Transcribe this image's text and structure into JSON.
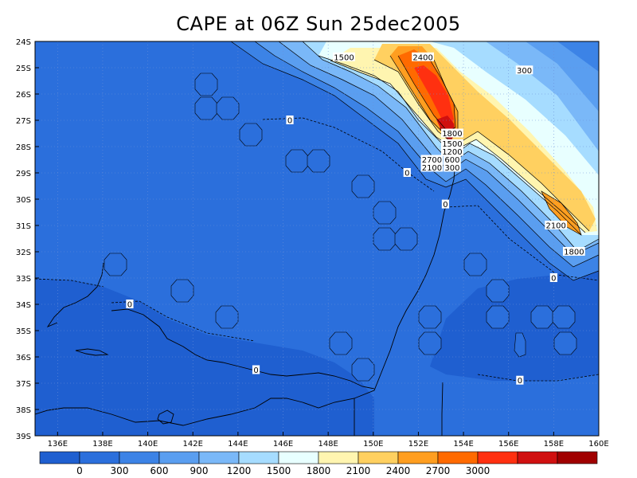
{
  "chart_data": {
    "type": "heatmap",
    "title": "CAPE at 06Z Sun 25dec2005",
    "x_ticks": [
      "136E",
      "138E",
      "140E",
      "142E",
      "144E",
      "146E",
      "148E",
      "150E",
      "152E",
      "154E",
      "156E",
      "158E",
      "160E"
    ],
    "x_tick_values": [
      136,
      138,
      140,
      142,
      144,
      146,
      148,
      150,
      152,
      154,
      156,
      158,
      160
    ],
    "y_ticks": [
      "24S",
      "25S",
      "26S",
      "27S",
      "28S",
      "29S",
      "30S",
      "31S",
      "32S",
      "33S",
      "34S",
      "35S",
      "36S",
      "37S",
      "38S",
      "39S"
    ],
    "y_tick_values": [
      -24,
      -25,
      -26,
      -27,
      -28,
      -29,
      -30,
      -31,
      -32,
      -33,
      -34,
      -35,
      -36,
      -37,
      -38,
      -39
    ],
    "xlim": [
      135,
      160
    ],
    "ylim": [
      -39,
      -24
    ],
    "grid": true,
    "colorbar": {
      "position": "bottom",
      "levels": [
        "0",
        "300",
        "600",
        "900",
        "1200",
        "1500",
        "1800",
        "2100",
        "2400",
        "2700",
        "3000"
      ],
      "colors": [
        "#1f5fd0",
        "#2b6fdc",
        "#3c83e6",
        "#5a9ef0",
        "#7ab8f8",
        "#a6dcff",
        "#e8ffff",
        "#fff5b0",
        "#ffd060",
        "#ff9e20",
        "#ff6a00",
        "#ff3010",
        "#d01010",
        "#a00000"
      ]
    },
    "contour_labels": [
      {
        "text": "0",
        "lon": 146.3,
        "lat": -27.0
      },
      {
        "text": "0",
        "lon": 139.2,
        "lat": -34.0
      },
      {
        "text": "0",
        "lon": 144.8,
        "lat": -36.5
      },
      {
        "text": "0",
        "lon": 151.5,
        "lat": -29.0
      },
      {
        "text": "0",
        "lon": 153.2,
        "lat": -30.2
      },
      {
        "text": "0",
        "lon": 158.0,
        "lat": -33.0
      },
      {
        "text": "0",
        "lon": 156.5,
        "lat": -36.9
      },
      {
        "text": "300",
        "lon": 156.7,
        "lat": -25.1
      },
      {
        "text": "1500",
        "lon": 148.7,
        "lat": -24.6
      },
      {
        "text": "2400",
        "lon": 152.2,
        "lat": -24.6
      },
      {
        "text": "1800",
        "lon": 153.5,
        "lat": -27.5
      },
      {
        "text": "1500",
        "lon": 153.5,
        "lat": -27.9
      },
      {
        "text": "1200",
        "lon": 153.5,
        "lat": -28.2
      },
      {
        "text": "600",
        "lon": 153.5,
        "lat": -28.5
      },
      {
        "text": "300",
        "lon": 153.5,
        "lat": -28.8
      },
      {
        "text": "2700",
        "lon": 152.6,
        "lat": -28.5
      },
      {
        "text": "2100",
        "lon": 152.6,
        "lat": -28.8
      },
      {
        "text": "2100",
        "lon": 158.1,
        "lat": -31.0
      },
      {
        "text": "1800",
        "lon": 158.9,
        "lat": -32.0
      }
    ]
  }
}
